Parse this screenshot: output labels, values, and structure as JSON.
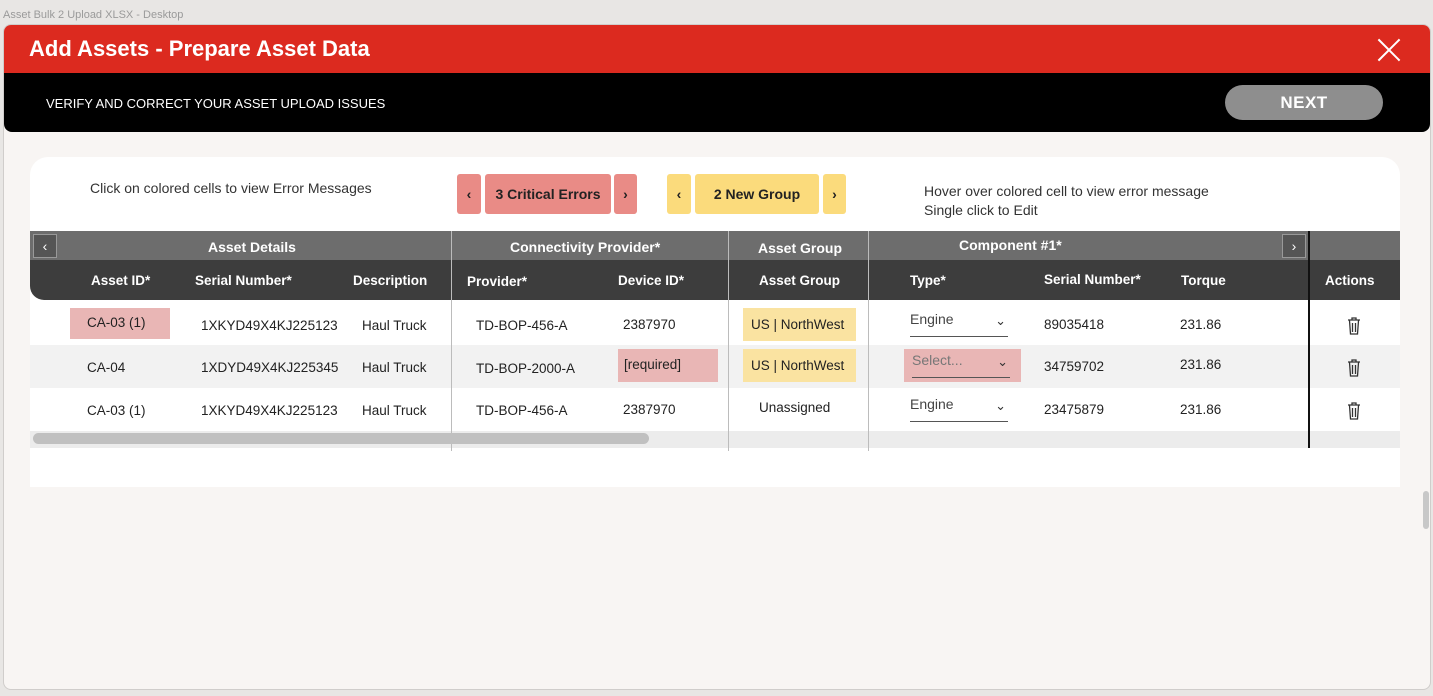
{
  "window_title": "Asset Bulk 2 Upload XLSX - Desktop",
  "dialog": {
    "title": "Add Assets - Prepare Asset Data",
    "subtitle": "VERIFY AND CORRECT YOUR ASSET UPLOAD ISSUES",
    "next_label": "NEXT"
  },
  "hints": {
    "left": "Click on colored cells to view Error Messages",
    "right_line1": "Hover over colored cell to view error message",
    "right_line2": "Single click to Edit"
  },
  "nav": {
    "errors_label": "3 Critical Errors",
    "groups_label": "2 New Group",
    "prev_glyph": "‹",
    "next_glyph": "›"
  },
  "column_groups": {
    "asset_details": "Asset Details",
    "connectivity": "Connectivity Provider*",
    "asset_group": "Asset Group",
    "component": "Component #1*"
  },
  "columns": {
    "asset_id": "Asset ID*",
    "serial": "Serial Number*",
    "description": "Description",
    "provider": "Provider*",
    "device_id": "Device ID*",
    "asset_group": "Asset Group",
    "type": "Type*",
    "comp_serial": "Serial Number*",
    "torque": "Torque",
    "actions": "Actions"
  },
  "rows": [
    {
      "asset_id": "CA-03 (1)",
      "serial": "1XKYD49X4KJ225123",
      "description": "Haul Truck",
      "provider": "TD-BOP-456-A",
      "device_id": "2387970",
      "asset_group": "US | NorthWest",
      "type": "Engine",
      "comp_serial": "89035418",
      "torque": "231.86"
    },
    {
      "asset_id": "CA-04",
      "serial": "1XDYD49X4KJ225345",
      "description": "Haul Truck",
      "provider": "TD-BOP-2000-A",
      "device_id": "[required]",
      "asset_group": "US | NorthWest",
      "type": "Select...",
      "comp_serial": "34759702",
      "torque": "231.86"
    },
    {
      "asset_id": "CA-03 (1)",
      "serial": "1XKYD49X4KJ225123",
      "description": "Haul Truck",
      "provider": "TD-BOP-456-A",
      "device_id": "2387970",
      "asset_group": "Unassigned",
      "type": "Engine",
      "comp_serial": "23475879",
      "torque": "231.86"
    }
  ],
  "colors": {
    "header_red": "#dc2a1f",
    "error_cell": "#e9b6b5",
    "warning_cell": "#fae3a1",
    "error_button": "#e98b86",
    "warning_button": "#fbdb7c"
  }
}
